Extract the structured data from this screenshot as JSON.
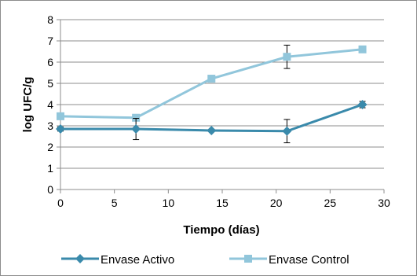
{
  "chart_data": {
    "type": "line",
    "xlabel": "Tiempo (días)",
    "ylabel": "log UFC/g",
    "xlim": [
      0,
      30
    ],
    "ylim": [
      0,
      8
    ],
    "xticks": [
      0,
      5,
      10,
      15,
      20,
      25,
      30
    ],
    "yticks": [
      0,
      1,
      2,
      3,
      4,
      5,
      6,
      7,
      8
    ],
    "grid": "horizontal",
    "legend_position": "bottom",
    "series": [
      {
        "name": "Envase Activo",
        "color": "#3a8aab",
        "marker": "diamond",
        "x": [
          0,
          7,
          14,
          21,
          28
        ],
        "y": [
          2.85,
          2.85,
          2.78,
          2.75,
          4.0
        ],
        "error": [
          0.1,
          0.5,
          0.05,
          0.55,
          0.15
        ]
      },
      {
        "name": "Envase Control",
        "color": "#91c6db",
        "marker": "square",
        "x": [
          0,
          7,
          14,
          21,
          28
        ],
        "y": [
          3.45,
          3.38,
          5.22,
          6.25,
          6.6
        ],
        "error": [
          0.05,
          0.05,
          0.1,
          0.55,
          0.1
        ]
      }
    ]
  }
}
